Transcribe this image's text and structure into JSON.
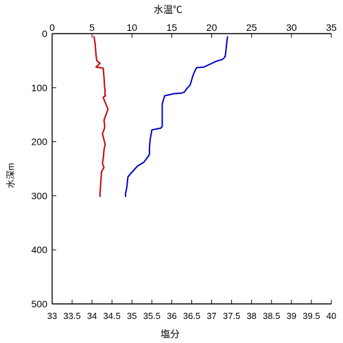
{
  "chart_data": {
    "type": "line",
    "title": "",
    "x_top_label": "水温℃",
    "x_bottom_label": "塩分",
    "ylabel": "水深m",
    "x_top_lim": [
      0,
      35
    ],
    "x_top_ticks": [
      "0",
      "5",
      "10",
      "15",
      "20",
      "25",
      "30",
      "35"
    ],
    "x_top_tick_values": [
      0,
      5,
      10,
      15,
      20,
      25,
      30,
      35
    ],
    "x_bottom_lim": [
      33,
      40
    ],
    "x_bottom_ticks": [
      "33",
      "33.5",
      "34",
      "34.5",
      "35",
      "35.5",
      "36",
      "36.5",
      "37",
      "37.5",
      "38",
      "38.5",
      "39",
      "39.5",
      "40"
    ],
    "x_bottom_tick_values": [
      33,
      33.5,
      34,
      34.5,
      35,
      35.5,
      36,
      36.5,
      37,
      37.5,
      38,
      38.5,
      39,
      39.5,
      40
    ],
    "ylim": [
      0,
      500
    ],
    "y_ticks": [
      "0",
      "100",
      "200",
      "300",
      "400",
      "500"
    ],
    "y_tick_values": [
      0,
      100,
      200,
      300,
      400,
      500
    ],
    "grid": false,
    "colors": {
      "temperature": "#0000cc",
      "salinity": "#cc0000",
      "top_label": "#1a1aa6",
      "bottom_label": "#cc0000",
      "axis": "#000000"
    },
    "series": [
      {
        "axis": "top",
        "color": "#0000cc",
        "x": [
          22.0,
          21.9,
          21.8,
          21.7,
          21.5,
          21.3,
          20.6,
          19.0,
          18.1,
          17.8,
          17.6,
          17.3,
          16.8,
          16.6,
          16.2,
          15.3,
          14.1,
          13.8,
          13.8,
          13.8,
          13.6,
          12.5,
          12.3,
          12.2,
          12.2,
          12.1,
          11.5,
          10.7,
          10.1,
          9.9,
          9.5,
          9.4,
          9.3,
          9.2,
          9.2
        ],
        "y": [
          5,
          15,
          30,
          42,
          46,
          48,
          51,
          62,
          63,
          72,
          80,
          95,
          103,
          108,
          110,
          111,
          115,
          130,
          150,
          172,
          175,
          178,
          195,
          210,
          222,
          226,
          238,
          245,
          255,
          258,
          265,
          280,
          290,
          295,
          302
        ]
      },
      {
        "axis": "bottom",
        "color": "#cc0000",
        "x": [
          34.05,
          34.08,
          34.1,
          34.12,
          34.2,
          34.1,
          34.28,
          34.3,
          34.31,
          34.33,
          34.32,
          34.34,
          34.28,
          34.4,
          34.3,
          34.32,
          34.31,
          34.3,
          34.26,
          34.33,
          34.3,
          34.29,
          34.28,
          34.26,
          34.3,
          34.24,
          34.23,
          34.22,
          34.21,
          34.2,
          34.2
        ],
        "y": [
          5,
          20,
          40,
          50,
          55,
          62,
          64,
          80,
          95,
          108,
          112,
          115,
          118,
          140,
          160,
          172,
          175,
          178,
          185,
          205,
          215,
          225,
          232,
          240,
          248,
          255,
          265,
          275,
          285,
          295,
          302
        ]
      }
    ]
  }
}
